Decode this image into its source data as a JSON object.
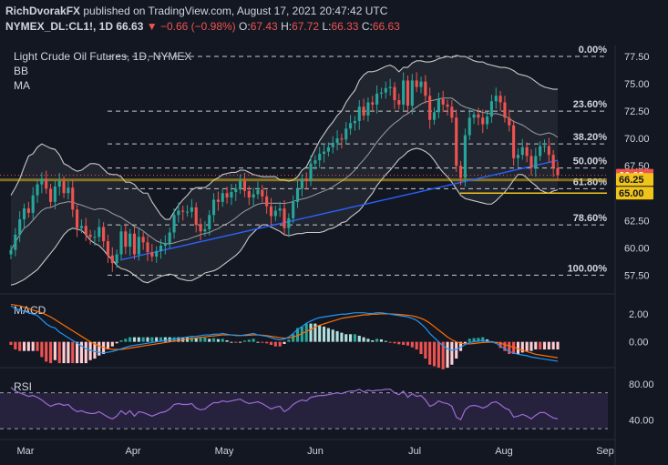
{
  "header": {
    "author": "RichDvorakFX",
    "published": "published on TradingView.com, August 17, 2021 20:47:42 UTC",
    "symbol": "NYMEX_DL:CL1!, 1D",
    "last": "66.63",
    "change": "▼ −0.66 (−0.98%)",
    "o_label": "O:",
    "o": "67.43",
    "h_label": "H:",
    "h": "67.72",
    "l_label": "L:",
    "l": "66.33",
    "c_label": "C:",
    "c": "66.63"
  },
  "overlays": {
    "title": "Light Crude Oil Futures, 1D, NYMEX",
    "bb": "BB",
    "ma": "MA"
  },
  "colors": {
    "background": "#131722",
    "up": "#26a69a",
    "down": "#ef5350",
    "bands": "#c8c8c8",
    "ma": "#2962ff",
    "macd": "#2196f3",
    "signal": "#ff6d00",
    "rsi": "#9c6bd3",
    "fib_zone": "#f0c419",
    "axis_text": "#d1d4dc"
  },
  "chart_data": [
    {
      "type": "candlestick",
      "title": "Light Crude Oil Futures, 1D, NYMEX",
      "y_ticks": [
        57.5,
        60.0,
        62.5,
        65.0,
        67.5,
        70.0,
        72.5,
        75.0,
        77.5
      ],
      "y_tick_labels": [
        "57.50",
        "60.00",
        "62.50",
        "65.00",
        "67.50",
        "70.00",
        "72.50",
        "75.00",
        "77.50"
      ],
      "ylim": [
        56.2,
        78.5
      ],
      "x_tick_labels": [
        "Mar",
        "Apr",
        "May",
        "Jun",
        "Jul",
        "Aug",
        "Sep"
      ],
      "fib_levels": [
        {
          "label": "0.00%",
          "value": 77.5
        },
        {
          "label": "23.60%",
          "value": 72.5
        },
        {
          "label": "38.20%",
          "value": 69.5
        },
        {
          "label": "50.00%",
          "value": 67.3
        },
        {
          "label": "61.80%",
          "value": 65.4
        },
        {
          "label": "78.60%",
          "value": 62.1
        },
        {
          "label": "100.00%",
          "value": 57.5
        }
      ],
      "price_labels": [
        {
          "label": "66.63",
          "value": 66.63,
          "color": "#ef5350"
        },
        {
          "label": "66.25",
          "value": 66.25,
          "color": "#f0c419"
        },
        {
          "label": "65.00",
          "value": 65.0,
          "color": "#f0c419"
        }
      ],
      "closes": [
        59.8,
        61.2,
        62.6,
        63.6,
        63.2,
        64.8,
        65.8,
        66.3,
        65.4,
        64.2,
        65.6,
        66.1,
        65.0,
        65.5,
        63.5,
        61.8,
        62.0,
        61.2,
        61.0,
        61.0,
        61.9,
        60.6,
        59.3,
        58.6,
        59.4,
        61.5,
        60.1,
        61.3,
        59.4,
        61.0,
        60.5,
        59.6,
        59.2,
        59.7,
        60.2,
        60.4,
        61.4,
        63.0,
        63.4,
        63.3,
        63.3,
        63.7,
        62.1,
        61.5,
        61.7,
        63.0,
        64.4,
        64.2,
        65.0,
        64.6,
        65.1,
        65.4,
        66.1,
        65.2,
        64.6,
        64.9,
        65.3,
        64.7,
        63.8,
        62.9,
        63.4,
        63.6,
        61.8,
        62.7,
        64.2,
        65.4,
        66.3,
        66.1,
        67.7,
        68.0,
        68.6,
        68.8,
        69.2,
        69.6,
        70.0,
        69.9,
        70.9,
        71.4,
        71.6,
        72.9,
        72.1,
        73.3,
        73.1,
        74.1,
        74.2,
        74.6,
        74.7,
        73.5,
        73.1,
        75.3,
        73.0,
        75.3,
        74.7,
        75.2,
        73.9,
        71.7,
        72.4,
        73.6,
        73.1,
        72.9,
        71.9,
        67.5,
        66.4,
        70.3,
        71.9,
        72.2,
        71.9,
        71.3,
        72.0,
        73.4,
        73.9,
        73.3,
        71.9,
        71.2,
        68.2,
        68.5,
        69.2,
        68.4,
        67.3,
        68.4,
        69.3,
        69.3,
        68.5,
        67.3,
        66.63
      ],
      "bb_upper": [
        64.8,
        65.5,
        66.3,
        67.4,
        68.4,
        68.6,
        69.2,
        69.5,
        69.3,
        69.1,
        69.0,
        68.5,
        67.7,
        67.5,
        67.2,
        67.0,
        67.1,
        67.4,
        67.7,
        67.7,
        67.6,
        67.2,
        66.8,
        66.7,
        66.7,
        66.5,
        66.0,
        66.0,
        65.8,
        65.3,
        65.0,
        65.0,
        64.2,
        63.6,
        63.0,
        62.6,
        62.6,
        63.3,
        63.9,
        64.4,
        64.8,
        65.3,
        65.5,
        65.5,
        65.5,
        65.8,
        66.2,
        66.4,
        66.7,
        66.8,
        66.9,
        66.9,
        67.1,
        67.1,
        66.9,
        66.7,
        66.6,
        66.5,
        66.5,
        66.5,
        66.5,
        66.2,
        66.2,
        66.1,
        66.2,
        66.5,
        67.1,
        67.4,
        68.2,
        69.0,
        69.8,
        70.4,
        71.0,
        71.5,
        72.1,
        72.5,
        73.3,
        73.9,
        74.4,
        75.3,
        75.8,
        76.1,
        76.1,
        76.2,
        76.4,
        76.6,
        76.7,
        76.5,
        76.1,
        76.5,
        76.5,
        76.9,
        77.1,
        77.1,
        77.0,
        77.0,
        77.1,
        77.3,
        77.4,
        77.5,
        77.4,
        77.6,
        77.5,
        77.5,
        77.3,
        77.1,
        77.0,
        77.0,
        76.8,
        76.7,
        76.6,
        76.5,
        76.5,
        76.4,
        76.2,
        75.9,
        75.8,
        75.7,
        75.5,
        75.2,
        74.9,
        74.7,
        74.6,
        74.5,
        74.5
      ],
      "bb_lower": [
        56.6,
        56.7,
        56.9,
        57.1,
        57.4,
        57.7,
        58.0,
        58.5,
        59.0,
        59.5,
        60.0,
        60.6,
        61.2,
        61.6,
        61.8,
        61.7,
        61.6,
        61.2,
        60.7,
        60.4,
        60.2,
        59.8,
        59.3,
        58.9,
        58.4,
        58.1,
        58.0,
        57.8,
        57.5,
        57.2,
        56.9,
        56.8,
        57.0,
        57.2,
        57.4,
        57.5,
        57.6,
        57.5,
        57.2,
        57.1,
        57.0,
        57.0,
        57.2,
        57.4,
        57.7,
        57.8,
        57.9,
        58.1,
        58.4,
        58.7,
        59.0,
        59.3,
        59.7,
        60.3,
        61.0,
        61.4,
        61.8,
        62.1,
        62.1,
        61.9,
        61.7,
        61.5,
        61.2,
        61.1,
        61.2,
        61.3,
        61.3,
        61.4,
        61.4,
        61.4,
        61.4,
        61.5,
        61.7,
        61.8,
        62.0,
        62.3,
        62.4,
        62.8,
        63.1,
        63.4,
        63.9,
        64.5,
        65.0,
        65.7,
        66.2,
        66.7,
        67.1,
        67.6,
        68.1,
        68.4,
        68.8,
        69.0,
        69.1,
        69.0,
        68.8,
        68.5,
        68.0,
        67.4,
        66.9,
        66.5,
        66.0,
        65.4,
        64.8,
        64.5,
        64.4,
        64.3,
        64.2,
        64.1,
        64.0,
        64.0,
        64.3,
        64.7,
        65.1,
        65.6,
        66.2,
        66.7,
        66.7,
        66.4,
        66.0,
        65.7,
        65.3,
        65.1,
        65.0,
        65.2,
        65.3
      ],
      "sma": [
        null,
        null,
        null,
        null,
        null,
        null,
        null,
        null,
        null,
        null,
        null,
        null,
        null,
        null,
        null,
        null,
        null,
        null,
        null,
        null,
        null,
        null,
        null,
        null,
        null,
        null,
        null,
        null,
        null,
        null,
        null,
        null,
        null,
        null,
        null,
        null,
        null,
        null,
        null,
        null,
        null,
        null,
        null,
        null,
        null,
        null,
        null,
        null,
        null,
        null,
        null,
        null,
        null,
        null,
        null,
        null,
        null,
        null,
        null,
        null,
        null,
        null,
        null,
        null,
        null,
        null,
        null,
        null,
        null,
        null,
        null,
        null,
        null,
        null,
        null,
        null,
        null,
        null,
        null,
        null,
        null,
        null,
        null,
        null,
        null,
        null,
        null,
        null,
        null,
        null,
        null,
        null,
        null,
        null,
        null,
        null,
        null,
        null,
        null,
        null,
        null,
        null,
        null,
        null,
        null,
        null,
        null,
        null,
        null,
        null,
        null,
        null,
        null,
        null,
        null,
        null,
        null,
        null,
        null,
        null,
        null,
        null,
        null,
        null,
        null
      ],
      "ma_start": [
        57.3,
        68.0
      ],
      "ma_end_note": "MA rises from the lower-left and crosses above the 61.80% zone near the right edge"
    },
    {
      "type": "macd",
      "name": "MACD",
      "y_ticks": [
        2.0,
        0.0
      ],
      "y_tick_labels": [
        "2.00",
        "0.00"
      ],
      "ylim": [
        -1.6,
        3.0
      ],
      "macd": [
        2.6,
        2.4,
        2.3,
        2.2,
        2.1,
        2.0,
        1.9,
        1.6,
        1.3,
        1.1,
        1.0,
        0.7,
        0.5,
        0.3,
        0.1,
        -0.1,
        -0.3,
        -0.5,
        -0.6,
        -0.7,
        -0.75,
        -0.8,
        -0.75,
        -0.7,
        -0.6,
        -0.5,
        -0.4,
        -0.3,
        -0.25,
        -0.2,
        -0.15,
        -0.1,
        -0.05,
        0.0,
        0.05,
        0.1,
        0.15,
        0.2,
        0.25,
        0.3,
        0.35,
        0.4,
        0.4,
        0.45,
        0.5,
        0.5,
        0.55,
        0.55,
        0.6,
        0.55,
        0.5,
        0.45,
        0.45,
        0.5,
        0.55,
        0.6,
        0.5,
        0.45,
        0.4,
        0.3,
        0.2,
        0.15,
        0.2,
        0.35,
        0.6,
        0.9,
        1.1,
        1.35,
        1.5,
        1.65,
        1.75,
        1.8,
        1.85,
        1.9,
        1.95,
        2.0,
        2.0,
        2.05,
        2.1,
        2.1,
        2.1,
        2.05,
        2.05,
        2.1,
        2.1,
        2.05,
        2.0,
        1.95,
        1.9,
        1.85,
        1.8,
        1.7,
        1.55,
        1.3,
        1.0,
        0.6,
        0.3,
        0.0,
        -0.3,
        -0.5,
        -0.6,
        -0.55,
        -0.4,
        -0.2,
        -0.05,
        0.0,
        0.05,
        0.1,
        0.05,
        0.0,
        -0.1,
        -0.3,
        -0.5,
        -0.7,
        -0.8,
        -0.9,
        -0.95,
        -1.0,
        -1.1,
        -1.15,
        -1.2,
        -1.25,
        -1.3,
        -1.35,
        -1.4
      ],
      "signal": [
        2.7,
        2.65,
        2.6,
        2.5,
        2.4,
        2.3,
        2.2,
        2.1,
        1.95,
        1.8,
        1.6,
        1.4,
        1.2,
        1.0,
        0.8,
        0.6,
        0.4,
        0.2,
        0.0,
        -0.15,
        -0.3,
        -0.4,
        -0.5,
        -0.55,
        -0.55,
        -0.55,
        -0.5,
        -0.45,
        -0.4,
        -0.35,
        -0.3,
        -0.25,
        -0.2,
        -0.15,
        -0.1,
        -0.05,
        0.0,
        0.05,
        0.1,
        0.15,
        0.2,
        0.25,
        0.28,
        0.32,
        0.36,
        0.4,
        0.43,
        0.46,
        0.5,
        0.5,
        0.5,
        0.48,
        0.46,
        0.46,
        0.48,
        0.5,
        0.5,
        0.48,
        0.45,
        0.4,
        0.35,
        0.3,
        0.27,
        0.28,
        0.35,
        0.45,
        0.6,
        0.75,
        0.9,
        1.05,
        1.2,
        1.3,
        1.4,
        1.5,
        1.6,
        1.7,
        1.75,
        1.8,
        1.85,
        1.9,
        1.95,
        1.95,
        2.0,
        2.0,
        2.02,
        2.02,
        2.02,
        2.0,
        1.98,
        1.95,
        1.92,
        1.88,
        1.8,
        1.7,
        1.55,
        1.35,
        1.1,
        0.85,
        0.6,
        0.35,
        0.15,
        0.0,
        -0.1,
        -0.15,
        -0.15,
        -0.12,
        -0.08,
        -0.05,
        -0.03,
        -0.02,
        -0.04,
        -0.1,
        -0.2,
        -0.3,
        -0.4,
        -0.5,
        -0.6,
        -0.7,
        -0.8,
        -0.9,
        -0.95,
        -1.0,
        -1.05,
        -1.1,
        -1.15
      ]
    },
    {
      "type": "rsi",
      "name": "RSI",
      "y_ticks": [
        80.0,
        40.0
      ],
      "y_tick_labels": [
        "80.00",
        "40.00"
      ],
      "ylim": [
        22.0,
        92.0
      ],
      "band": [
        70,
        30
      ],
      "values": [
        76,
        72,
        70,
        68,
        66,
        67,
        65,
        62,
        58,
        55,
        57,
        58,
        56,
        57,
        52,
        49,
        50,
        48,
        47,
        47,
        49,
        46,
        43,
        41,
        44,
        50,
        46,
        50,
        44,
        49,
        48,
        46,
        44,
        46,
        48,
        49,
        52,
        57,
        58,
        57,
        57,
        58,
        53,
        51,
        52,
        56,
        59,
        59,
        61,
        60,
        61,
        62,
        63,
        60,
        58,
        59,
        60,
        58,
        55,
        52,
        54,
        55,
        49,
        52,
        57,
        60,
        62,
        61,
        65,
        66,
        67,
        67,
        68,
        69,
        70,
        69,
        71,
        72,
        72,
        74,
        71,
        73,
        72,
        73,
        73,
        74,
        74,
        70,
        68,
        72,
        65,
        69,
        66,
        67,
        62,
        55,
        57,
        61,
        59,
        58,
        55,
        43,
        40,
        51,
        55,
        56,
        55,
        53,
        55,
        59,
        60,
        57,
        53,
        51,
        43,
        44,
        46,
        44,
        41,
        45,
        48,
        48,
        45,
        42,
        41
      ]
    }
  ]
}
